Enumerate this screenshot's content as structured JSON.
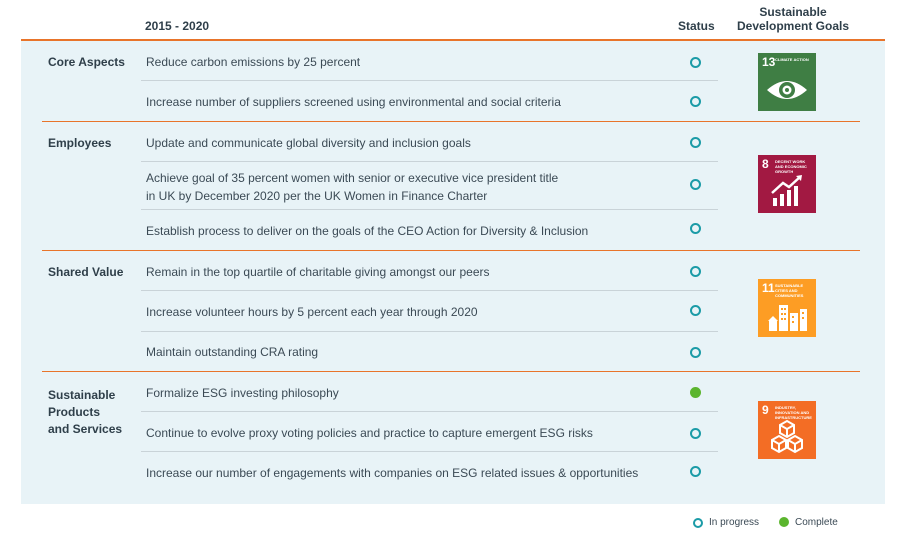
{
  "header": {
    "period": "2015 - 2020",
    "status": "Status",
    "sdg_line1": "Sustainable",
    "sdg_line2": "Development Goals"
  },
  "sections": [
    {
      "category": [
        "Core Aspects"
      ],
      "items": [
        {
          "text": [
            "Reduce carbon emissions by 25 percent"
          ],
          "status": "in-progress"
        },
        {
          "text": [
            "Increase number of suppliers screened using environmental and social criteria"
          ],
          "status": "in-progress"
        }
      ],
      "sdg": {
        "number": "13",
        "title": "Climate Action",
        "color": "#3f7e44",
        "icon": "eye-globe-icon"
      }
    },
    {
      "category": [
        "Employees"
      ],
      "items": [
        {
          "text": [
            "Update and communicate global diversity and inclusion goals"
          ],
          "status": "in-progress"
        },
        {
          "text": [
            "Achieve goal of 35 percent women with senior or executive vice president title",
            "in UK by December 2020 per the UK Women in Finance Charter"
          ],
          "status": "in-progress"
        },
        {
          "text": [
            "Establish process to deliver on the goals of the CEO Action for Diversity & Inclusion"
          ],
          "status": "in-progress"
        }
      ],
      "sdg": {
        "number": "8",
        "title": "Decent Work and Economic Growth",
        "color": "#a21942",
        "icon": "growth-chart-icon"
      }
    },
    {
      "category": [
        "Shared Value"
      ],
      "items": [
        {
          "text": [
            "Remain in the top quartile of charitable giving amongst our peers"
          ],
          "status": "in-progress"
        },
        {
          "text": [
            "Increase volunteer hours by 5 percent each year through 2020"
          ],
          "status": "in-progress"
        },
        {
          "text": [
            "Maintain outstanding CRA rating"
          ],
          "status": "in-progress"
        }
      ],
      "sdg": {
        "number": "11",
        "title": "Sustainable Cities and Communities",
        "color": "#fd9d24",
        "icon": "city-buildings-icon"
      }
    },
    {
      "category": [
        "Sustainable",
        "Products",
        "and Services"
      ],
      "items": [
        {
          "text": [
            "Formalize ESG investing philosophy"
          ],
          "status": "complete"
        },
        {
          "text": [
            "Continue to evolve proxy voting policies and practice to capture emergent ESG risks"
          ],
          "status": "in-progress"
        },
        {
          "text": [
            "Increase our number of engagements with companies on ESG related issues & opportunities"
          ],
          "status": "in-progress"
        }
      ],
      "sdg": {
        "number": "9",
        "title": "Industry, Innovation and Infrastructure",
        "color": "#f36d25",
        "icon": "stacked-cubes-icon"
      }
    }
  ],
  "legend": {
    "in_progress": "In progress",
    "complete": "Complete",
    "in_progress_color": "#1b9ba7",
    "complete_color": "#5bb52e"
  }
}
